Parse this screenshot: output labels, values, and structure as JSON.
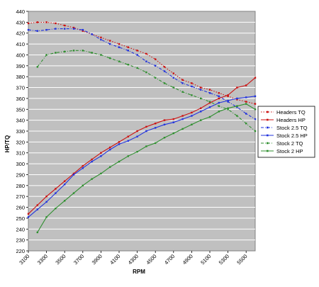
{
  "chart_data": {
    "type": "line",
    "title": "",
    "xlabel": "RPM",
    "ylabel": "HP/TQ",
    "ylim": [
      220,
      440
    ],
    "y_ticks": [
      220,
      230,
      240,
      250,
      260,
      270,
      280,
      290,
      300,
      310,
      320,
      330,
      340,
      350,
      360,
      370,
      380,
      390,
      400,
      410,
      420,
      430,
      440
    ],
    "x_ticks": [
      "3100",
      "3300",
      "3500",
      "3700",
      "3900",
      "4100",
      "4300",
      "4500",
      "4700",
      "4900",
      "5100",
      "5300",
      "5500"
    ],
    "x_range": [
      3100,
      5600
    ],
    "grid": true,
    "legend_position": "right",
    "colors": {
      "plot_bg": "#c0c0c0",
      "grid": "#ffffff",
      "headers": "#cc1111",
      "stock25": "#2233dd",
      "stock2": "#2f8f2f"
    },
    "series": [
      {
        "name": "Headers TQ",
        "color": "#cc1111",
        "dash": "dot",
        "x": [
          3100,
          3200,
          3300,
          3400,
          3500,
          3600,
          3700,
          3800,
          3900,
          4000,
          4100,
          4200,
          4300,
          4400,
          4500,
          4600,
          4700,
          4800,
          4900,
          5000,
          5100,
          5200,
          5300,
          5400,
          5500,
          5600
        ],
        "y": [
          429,
          430,
          430,
          429,
          427,
          425,
          422,
          419,
          416,
          413,
          410,
          407,
          404,
          401,
          396,
          389,
          383,
          377,
          374,
          370,
          368,
          365,
          362,
          359,
          357,
          355
        ]
      },
      {
        "name": "Headers HP",
        "color": "#cc1111",
        "dash": "solid",
        "x": [
          3100,
          3200,
          3300,
          3400,
          3500,
          3600,
          3700,
          3800,
          3900,
          4000,
          4100,
          4200,
          4300,
          4400,
          4500,
          4600,
          4700,
          4800,
          4900,
          5000,
          5100,
          5200,
          5300,
          5400,
          5500,
          5600
        ],
        "y": [
          254,
          262,
          270,
          277,
          284,
          291,
          298,
          304,
          310,
          315,
          320,
          325,
          330,
          334,
          337,
          340,
          341,
          344,
          347,
          351,
          356,
          360,
          363,
          370,
          372,
          379
        ]
      },
      {
        "name": "Stock 2.5 TQ",
        "color": "#2233dd",
        "dash": "dashdot",
        "x": [
          3100,
          3200,
          3300,
          3400,
          3500,
          3600,
          3700,
          3800,
          3900,
          4000,
          4100,
          4200,
          4300,
          4400,
          4500,
          4600,
          4700,
          4800,
          4900,
          5000,
          5100,
          5200,
          5300,
          5400,
          5500,
          5600
        ],
        "y": [
          423,
          422,
          423,
          424,
          424,
          424,
          423,
          419,
          414,
          410,
          407,
          404,
          400,
          394,
          390,
          385,
          379,
          374,
          371,
          368,
          365,
          362,
          357,
          352,
          346,
          341
        ]
      },
      {
        "name": "Stock 2.5 HP",
        "color": "#2233dd",
        "dash": "solid",
        "x": [
          3100,
          3200,
          3300,
          3400,
          3500,
          3600,
          3700,
          3800,
          3900,
          4000,
          4100,
          4200,
          4300,
          4400,
          4500,
          4600,
          4700,
          4800,
          4900,
          5000,
          5100,
          5200,
          5300,
          5400,
          5500,
          5600
        ],
        "y": [
          251,
          258,
          265,
          273,
          281,
          290,
          296,
          302,
          307,
          313,
          318,
          321,
          325,
          330,
          333,
          336,
          338,
          341,
          344,
          348,
          352,
          356,
          358,
          360,
          361,
          362
        ]
      },
      {
        "name": "Stock 2 TQ",
        "color": "#2f8f2f",
        "dash": "dashdot",
        "x": [
          3200,
          3300,
          3400,
          3500,
          3600,
          3700,
          3800,
          3900,
          4000,
          4100,
          4200,
          4300,
          4400,
          4500,
          4600,
          4700,
          4800,
          4900,
          5000,
          5100,
          5200,
          5300,
          5400,
          5500,
          5600
        ],
        "y": [
          389,
          400,
          402,
          403,
          404,
          404,
          402,
          400,
          397,
          394,
          391,
          388,
          384,
          379,
          374,
          370,
          366,
          363,
          360,
          357,
          353,
          350,
          344,
          337,
          330
        ]
      },
      {
        "name": "Stock 2 HP",
        "color": "#2f8f2f",
        "dash": "solid",
        "x": [
          3200,
          3300,
          3400,
          3500,
          3600,
          3700,
          3800,
          3900,
          4000,
          4100,
          4200,
          4300,
          4400,
          4500,
          4600,
          4700,
          4800,
          4900,
          5000,
          5100,
          5200,
          5300,
          5400,
          5500,
          5600
        ],
        "y": [
          237,
          251,
          259,
          266,
          273,
          280,
          286,
          291,
          297,
          302,
          307,
          311,
          316,
          319,
          324,
          328,
          332,
          336,
          340,
          343,
          348,
          351,
          353,
          355,
          350
        ]
      }
    ]
  }
}
